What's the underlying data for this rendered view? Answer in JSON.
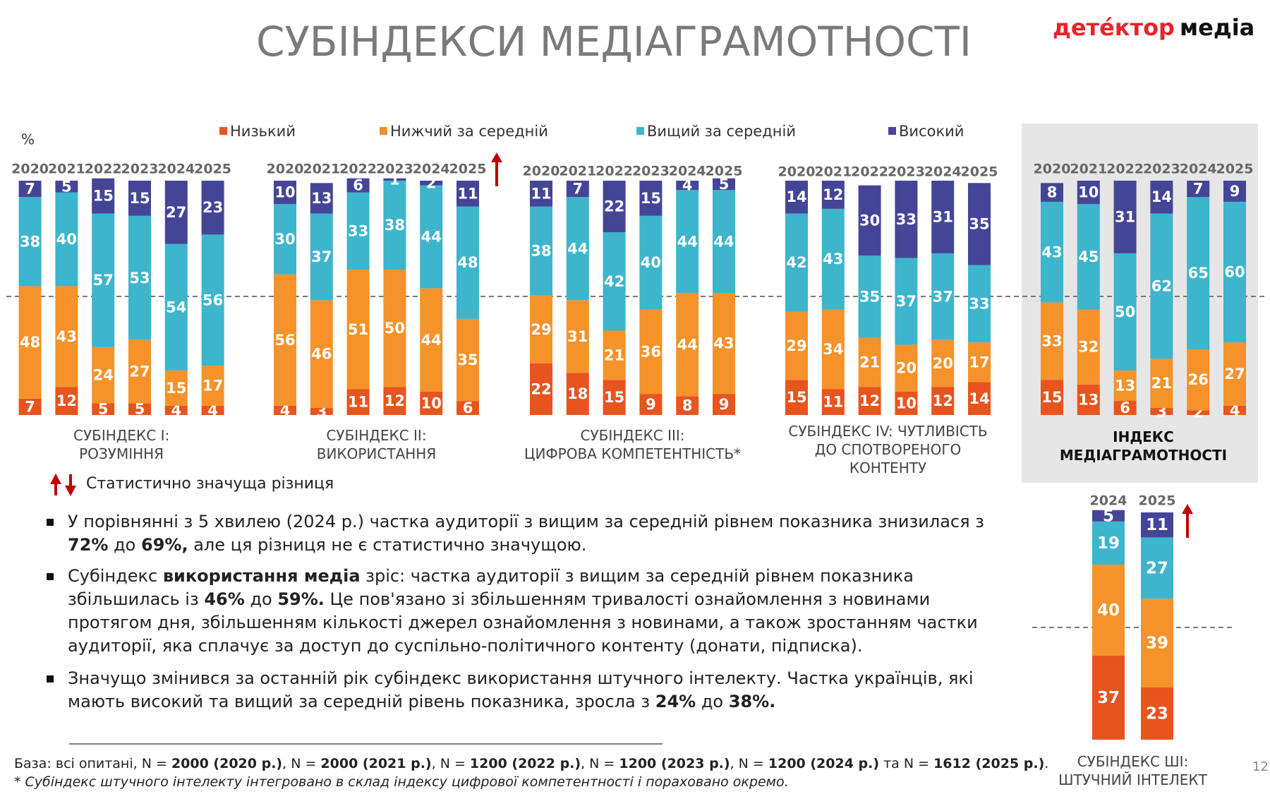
{
  "header": {
    "title": "СУБІНДЕКСИ МЕДІАГРАМОТНОСТІ",
    "logo_red": "детéктор",
    "logo_black": "медіа",
    "unit": "%",
    "page": "12"
  },
  "significance": "Статистично значуща різниця",
  "bullets": [
    [
      "У порівнянні з 5 хвилею (2024 р.) частка аудиторії з вищим за середній рівнем показника знизилася з ",
      "72%",
      " до ",
      "69%,",
      " але ця різниця не є статистично значущою."
    ],
    [
      "Субіндекс ",
      "використання медіа",
      " зріс: частка аудиторії з вищим за середній рівнем показника збільшилась із ",
      "46%",
      " до ",
      "59%.",
      " Це пов'язано зі збільшенням тривалості ознайомлення з новинами протягом дня, збільшенням кількості джерел ознайомлення з новинами, а також зростанням частки аудиторії, яка сплачує за доступ до суспільно-політичного контенту (донати, підписка)."
    ],
    [
      "Значущо змінився за останній рік субіндекс використання штучного інтелекту. Частка українців, які мають високий та вищий за середній рівень показника, зросла з ",
      "24%",
      " до ",
      "38%."
    ]
  ],
  "footnote": {
    "base": [
      "База: всі опитані, N = ",
      "2000 (2020 р.)",
      ", N = ",
      "2000 (2021 р.)",
      ", N = ",
      "1200 (2022 р.)",
      ", N = ",
      "1200 (2023 р.)",
      ", N = ",
      "1200 (2024 р.)",
      " та N = ",
      "1612 (2025 р.)",
      "."
    ],
    "note": "* Субіндекс штучного інтелекту інтегровано в склад індексу цифрової компетентності і пораховано окремо."
  },
  "chart_data": [
    {
      "type": "bar",
      "stacked": true,
      "title": "СУБІНДЕКС І:\nРОЗУМІННЯ",
      "categories": [
        "2020",
        "2021",
        "2022",
        "2023",
        "2024",
        "2025"
      ],
      "ylim": [
        0,
        100
      ],
      "series": [
        {
          "name": "Низький",
          "color": "#e8541e",
          "values": [
            7,
            12,
            5,
            5,
            4,
            4
          ]
        },
        {
          "name": "Нижчий за середній",
          "color": "#f5922a",
          "values": [
            48,
            43,
            24,
            27,
            15,
            17
          ]
        },
        {
          "name": "Вищий за середній",
          "color": "#3db5cc",
          "values": [
            38,
            40,
            57,
            53,
            54,
            56
          ]
        },
        {
          "name": "Високий",
          "color": "#454597",
          "values": [
            7,
            5,
            15,
            15,
            27,
            23
          ]
        }
      ]
    },
    {
      "type": "bar",
      "stacked": true,
      "title": "СУБІНДЕКС ІІ:\nВИКОРИСТАННЯ",
      "categories": [
        "2020",
        "2021",
        "2022",
        "2023",
        "2024",
        "2025"
      ],
      "ylim": [
        0,
        100
      ],
      "series": [
        {
          "color": "#e8541e",
          "values": [
            4,
            3,
            11,
            12,
            10,
            6
          ]
        },
        {
          "color": "#f5922a",
          "values": [
            56,
            46,
            51,
            50,
            44,
            35
          ]
        },
        {
          "color": "#3db5cc",
          "values": [
            30,
            37,
            33,
            38,
            44,
            48
          ]
        },
        {
          "color": "#454597",
          "values": [
            10,
            13,
            6,
            1,
            2,
            11
          ]
        }
      ]
    },
    {
      "type": "bar",
      "stacked": true,
      "title": "СУБІНДЕКС ІІІ:\nЦИФРОВА КОМПЕТЕНТНІСТЬ*",
      "categories": [
        "2020",
        "2021",
        "2022",
        "2023",
        "2024",
        "2025"
      ],
      "ylim": [
        0,
        100
      ],
      "series": [
        {
          "color": "#e8541e",
          "values": [
            22,
            18,
            15,
            9,
            8,
            9
          ]
        },
        {
          "color": "#f5922a",
          "values": [
            29,
            31,
            21,
            36,
            44,
            43
          ]
        },
        {
          "color": "#3db5cc",
          "values": [
            38,
            44,
            42,
            40,
            44,
            44
          ]
        },
        {
          "color": "#454597",
          "values": [
            11,
            7,
            22,
            15,
            4,
            5
          ]
        }
      ]
    },
    {
      "type": "bar",
      "stacked": true,
      "title": "СУБІНДЕКС IV: ЧУТЛИВІСТЬ\nДО СПОТВОРЕНОГО\nКОНТЕНТУ",
      "categories": [
        "2020",
        "2021",
        "2022",
        "2023",
        "2024",
        "2025"
      ],
      "ylim": [
        0,
        100
      ],
      "series": [
        {
          "color": "#e8541e",
          "values": [
            15,
            11,
            12,
            10,
            12,
            14
          ]
        },
        {
          "color": "#f5922a",
          "values": [
            29,
            34,
            21,
            20,
            20,
            17
          ]
        },
        {
          "color": "#3db5cc",
          "values": [
            42,
            43,
            35,
            37,
            37,
            33
          ]
        },
        {
          "color": "#454597",
          "values": [
            14,
            12,
            30,
            33,
            31,
            35
          ]
        }
      ]
    },
    {
      "type": "bar",
      "stacked": true,
      "title": "ІНДЕКС\nМЕДІАГРАМОТНОСТІ",
      "categories": [
        "2020",
        "2021",
        "2022",
        "2023",
        "2024",
        "2025"
      ],
      "ylim": [
        0,
        100
      ],
      "series": [
        {
          "color": "#e8541e",
          "values": [
            15,
            13,
            6,
            3,
            2,
            4
          ]
        },
        {
          "color": "#f5922a",
          "values": [
            33,
            32,
            13,
            21,
            26,
            27
          ]
        },
        {
          "color": "#3db5cc",
          "values": [
            43,
            45,
            50,
            62,
            65,
            60
          ]
        },
        {
          "color": "#454597",
          "values": [
            8,
            10,
            31,
            14,
            7,
            9
          ]
        }
      ]
    },
    {
      "type": "bar",
      "stacked": true,
      "title": "СУБІНДЕКС ШІ:\nШТУЧНИЙ ІНТЕЛЕКТ",
      "categories": [
        "2024",
        "2025"
      ],
      "ylim": [
        0,
        100
      ],
      "series": [
        {
          "color": "#e8541e",
          "values": [
            37,
            23
          ]
        },
        {
          "color": "#f5922a",
          "values": [
            40,
            39
          ]
        },
        {
          "color": "#3db5cc",
          "values": [
            19,
            27
          ]
        },
        {
          "color": "#454597",
          "values": [
            5,
            11
          ]
        }
      ]
    }
  ]
}
